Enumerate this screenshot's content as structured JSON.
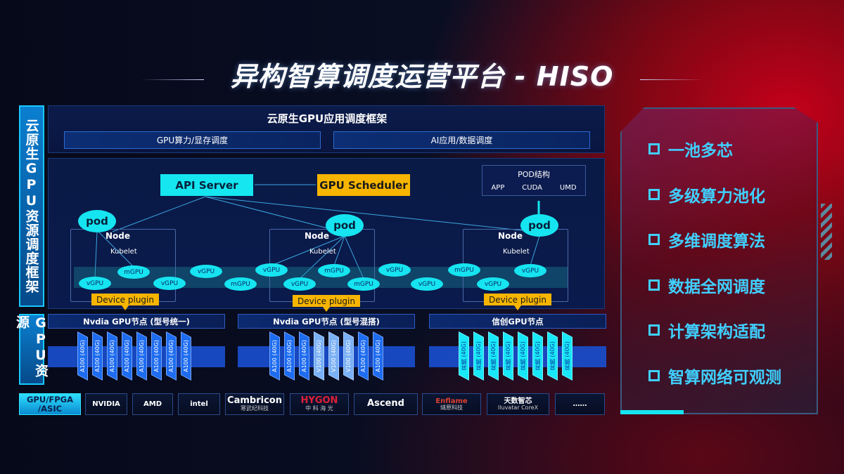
{
  "title": "异构智算调度运营平台 - HISO",
  "left_labels": {
    "scheduling_framework": "云原生GPU资源调度框架",
    "gpu_resources": "GPU资源"
  },
  "app_framework": {
    "title": "云原生GPU应用调度框架",
    "boxes": [
      "GPU算力/显存调度",
      "AI应用/数据调度"
    ]
  },
  "control_plane": {
    "api_server": "API Server",
    "gpu_scheduler": "GPU Scheduler"
  },
  "pod_structure": {
    "title": "POD结构",
    "items": [
      "APP",
      "CUDA",
      "UMD"
    ]
  },
  "nodes": [
    {
      "pod": "pod",
      "node": "Node",
      "kubelet": "Kubelet",
      "device_plugin": "Device plugin"
    },
    {
      "pod": "pod",
      "node": "Node",
      "kubelet": "Kubelet",
      "device_plugin": "Device plugin"
    },
    {
      "pod": "pod",
      "node": "Node",
      "kubelet": "Kubelet",
      "device_plugin": "Device plugin"
    }
  ],
  "virtual_gpus": [
    "vGPU",
    "mGPU",
    "vGPU",
    "vGPU",
    "mGPU",
    "vGPU",
    "vGPU",
    "mGPU",
    "mGPU",
    "vGPU",
    "vGPU",
    "mGPU",
    "vGPU",
    "vGPU"
  ],
  "gpu_nodes": [
    {
      "title": "Nvdia GPU节点 (型号统一)",
      "cards": [
        "A100 (40G)",
        "A100 (40G)",
        "A100 (40G)",
        "A100 (40G)",
        "A100 (40G)",
        "A100 (40G)",
        "A100 (40G)",
        "A100 (40G)"
      ],
      "card_styles": [
        "a",
        "a",
        "a",
        "a",
        "a",
        "a",
        "a",
        "a"
      ]
    },
    {
      "title": "Nvdia GPU节点 (型号混搭)",
      "cards": [
        "A100 (40G)",
        "A100 (40G)",
        "A100 (40G)",
        "V100 (40G)",
        "V100 (40G)",
        "V100 (40G)",
        "A100 (40G)",
        "A100 (40G)"
      ],
      "card_styles": [
        "a",
        "a",
        "a",
        "b",
        "b",
        "b",
        "a",
        "a"
      ]
    },
    {
      "title": "信创GPU节点",
      "cards": [
        "昇腾 (40G)",
        "昇腾 (40G)",
        "昇腾 (40G)",
        "昇腾 (40G)",
        "昇腾 (40G)",
        "昇腾 (40G)",
        "昇腾 (40G)",
        "昇腾 (40G)"
      ],
      "card_styles": [
        "c",
        "c",
        "c",
        "c",
        "c",
        "c",
        "c",
        "c"
      ]
    }
  ],
  "vendors": {
    "label": "GPU/FPGA /ASIC",
    "logos": [
      {
        "name": "NVIDIA",
        "sub": ""
      },
      {
        "name": "AMD",
        "sub": ""
      },
      {
        "name": "intel",
        "sub": ""
      },
      {
        "name": "Cambricon",
        "sub": "寒武纪科技"
      },
      {
        "name": "HYGON",
        "sub": "中 科 海 光"
      },
      {
        "name": "Ascend",
        "sub": ""
      },
      {
        "name": "Enflame",
        "sub": "燧原科技"
      },
      {
        "name": "天数智芯",
        "sub": "Iluvatar CoreX"
      },
      {
        "name": "……",
        "sub": ""
      }
    ]
  },
  "features": [
    "一池多芯",
    "多级算力池化",
    "多维调度算法",
    "数据全网调度",
    "计算架构适配",
    "智算网络可观测"
  ],
  "colors": {
    "cyan": "#16e4f0",
    "orange": "#f7b500",
    "blue": "#1a4fd0",
    "feature_text": "#3fd0ff"
  }
}
